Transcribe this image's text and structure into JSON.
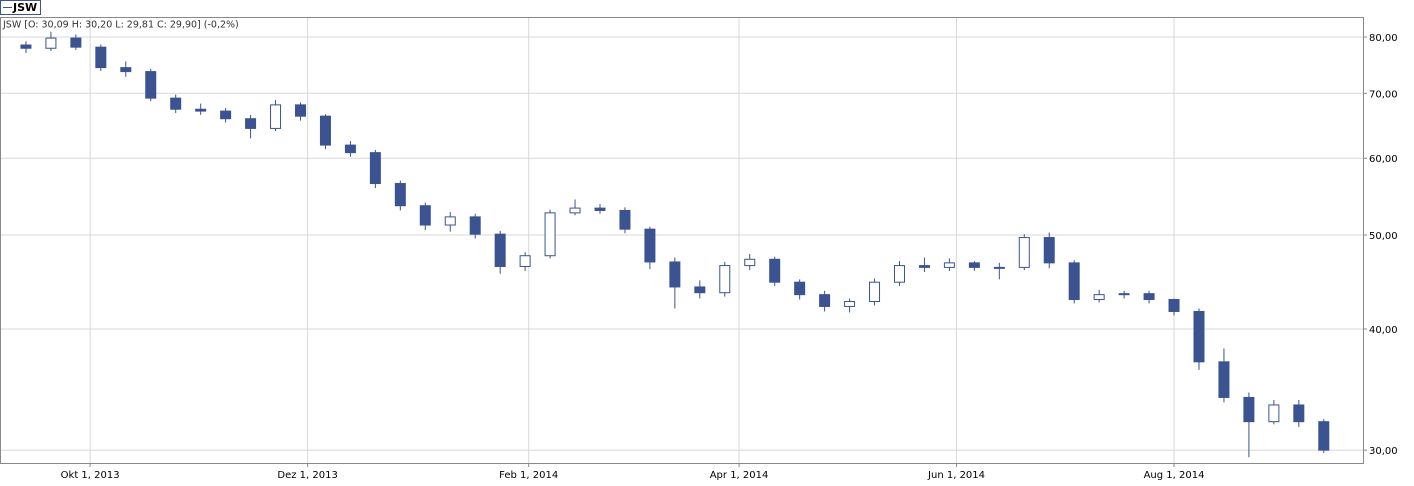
{
  "chart_data": {
    "type": "candlestick",
    "legend": "JSW",
    "header": "JSW [O: 30,09  H: 30,20  L: 29,81  C: 29,90] (-0,2%)",
    "log_scale": true,
    "grid": true,
    "up_color": "#ffffff",
    "down_color": "#3b5391",
    "edge_color": "#3b5391",
    "x": [
      "2013-09-13",
      "2013-09-20",
      "2013-09-27",
      "2013-10-04",
      "2013-10-11",
      "2013-10-18",
      "2013-10-25",
      "2013-11-01",
      "2013-11-08",
      "2013-11-15",
      "2013-11-22",
      "2013-11-29",
      "2013-12-06",
      "2013-12-13",
      "2013-12-20",
      "2013-12-27",
      "2014-01-03",
      "2014-01-10",
      "2014-01-17",
      "2014-01-24",
      "2014-01-31",
      "2014-02-07",
      "2014-02-14",
      "2014-02-21",
      "2014-02-28",
      "2014-03-07",
      "2014-03-14",
      "2014-03-21",
      "2014-03-28",
      "2014-04-04",
      "2014-04-11",
      "2014-04-18",
      "2014-04-25",
      "2014-05-02",
      "2014-05-09",
      "2014-05-16",
      "2014-05-23",
      "2014-05-30",
      "2014-06-06",
      "2014-06-13",
      "2014-06-20",
      "2014-06-27",
      "2014-07-04",
      "2014-07-11",
      "2014-07-18",
      "2014-07-25",
      "2014-08-01",
      "2014-08-08",
      "2014-08-15",
      "2014-08-22",
      "2014-08-29",
      "2014-09-05",
      "2014-09-12"
    ],
    "open": [
      78.5,
      77.9,
      79.8,
      78.1,
      74.4,
      73.7,
      69.2,
      67.4,
      67.1,
      65.9,
      64.4,
      68.1,
      66.3,
      61.9,
      60.8,
      56.5,
      53.6,
      51.2,
      52.2,
      50.1,
      46.4,
      47.6,
      52.7,
      53.3,
      53.0,
      50.7,
      46.9,
      44.2,
      43.6,
      46.5,
      47.2,
      44.7,
      43.4,
      42.2,
      42.7,
      44.7,
      46.5,
      46.3,
      46.8,
      46.3,
      46.3,
      49.7,
      46.8,
      42.9,
      43.4,
      43.5,
      42.9,
      41.7,
      37.0,
      34.0,
      32.1,
      33.4,
      32.1
    ],
    "high": [
      79.2,
      81.0,
      80.5,
      78.6,
      75.5,
      74.2,
      69.8,
      68.3,
      67.6,
      66.5,
      68.9,
      68.5,
      66.6,
      62.5,
      61.2,
      56.9,
      54.0,
      52.8,
      52.6,
      50.5,
      48.0,
      53.1,
      54.4,
      53.8,
      53.4,
      51.0,
      47.4,
      44.9,
      46.9,
      47.8,
      47.5,
      45.0,
      43.8,
      43.0,
      45.1,
      47.0,
      47.4,
      47.3,
      47.0,
      46.8,
      50.1,
      50.3,
      47.1,
      43.9,
      43.8,
      43.8,
      43.0,
      42.0,
      38.2,
      34.4,
      33.8,
      33.8,
      32.3
    ],
    "low": [
      77.0,
      77.4,
      77.6,
      73.8,
      72.8,
      68.7,
      66.8,
      66.5,
      65.3,
      62.9,
      64.0,
      65.6,
      61.3,
      60.2,
      55.9,
      53.0,
      50.6,
      50.4,
      49.6,
      45.6,
      45.9,
      47.3,
      52.4,
      52.6,
      50.2,
      46.1,
      42.0,
      43.0,
      43.2,
      46.0,
      44.3,
      42.9,
      41.7,
      41.6,
      42.3,
      44.3,
      45.8,
      45.9,
      45.9,
      45.0,
      46.0,
      46.2,
      42.5,
      42.6,
      43.0,
      42.5,
      41.3,
      36.3,
      33.6,
      29.5,
      31.9,
      31.7,
      29.8
    ],
    "close": [
      77.9,
      79.8,
      78.1,
      74.4,
      73.7,
      69.2,
      67.4,
      67.1,
      65.9,
      64.4,
      68.1,
      66.3,
      61.9,
      60.8,
      56.5,
      53.6,
      51.2,
      52.2,
      50.1,
      46.4,
      47.6,
      52.7,
      53.3,
      53.0,
      50.7,
      46.9,
      44.2,
      43.6,
      46.5,
      47.2,
      44.7,
      43.4,
      42.2,
      42.7,
      44.7,
      46.5,
      46.3,
      46.8,
      46.3,
      46.3,
      49.7,
      46.8,
      42.9,
      43.4,
      43.5,
      42.9,
      41.7,
      37.0,
      34.0,
      32.1,
      33.4,
      32.1,
      30.0
    ],
    "xlim": [
      "2013-09-06",
      "2014-09-23"
    ],
    "xticks": [
      {
        "value": "2013-10-01",
        "label": "Okt 1, 2013"
      },
      {
        "value": "2013-12-01",
        "label": "Dez 1, 2013"
      },
      {
        "value": "2014-02-01",
        "label": "Feb 1, 2014"
      },
      {
        "value": "2014-04-01",
        "label": "Apr 1, 2014"
      },
      {
        "value": "2014-06-01",
        "label": "Jun 1, 2014"
      },
      {
        "value": "2014-08-01",
        "label": "Aug 1, 2014"
      }
    ],
    "ylim": [
      29.1,
      83.7
    ],
    "yticks": [
      {
        "value": 30,
        "label": "30,00"
      },
      {
        "value": 40,
        "label": "40,00"
      },
      {
        "value": 50,
        "label": "50,00"
      },
      {
        "value": 60,
        "label": "60,00"
      },
      {
        "value": 70,
        "label": "70,00"
      },
      {
        "value": 80,
        "label": "80,00"
      }
    ]
  }
}
